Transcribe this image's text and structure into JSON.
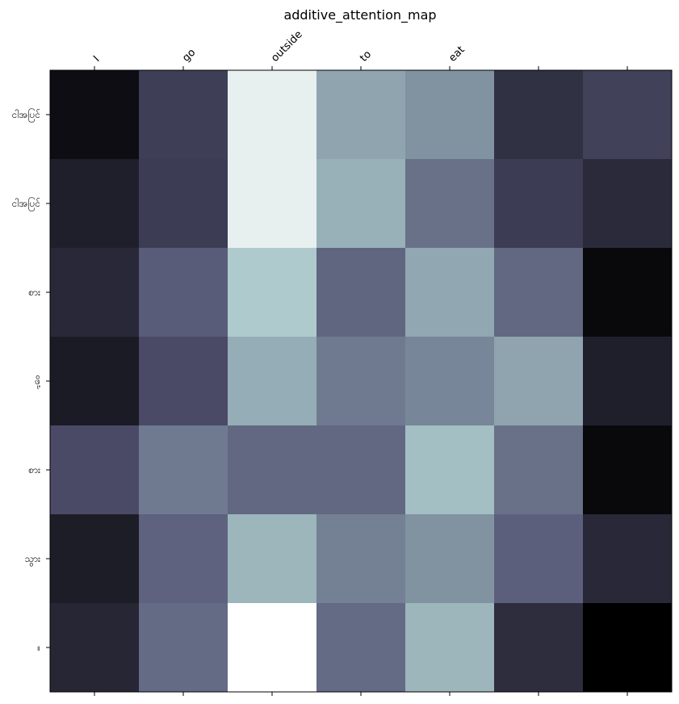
{
  "chart_data": {
    "type": "heatmap",
    "title": "additive_attention_map",
    "x_tick_labels": [
      "I",
      "go",
      "outside",
      "to",
      "eat",
      "",
      ""
    ],
    "y_tick_labels": [
      "ငါအပြင်",
      "ငါအပြင်",
      "စား",
      "ဖို့",
      "စား",
      "သွား",
      "။"
    ],
    "colormap": "bone",
    "grid": false,
    "values": [
      [
        0.06,
        0.28,
        0.93,
        0.64,
        0.58,
        0.22,
        0.29
      ],
      [
        0.14,
        0.27,
        0.93,
        0.68,
        0.47,
        0.27,
        0.19
      ],
      [
        0.18,
        0.4,
        0.77,
        0.43,
        0.65,
        0.44,
        0.04
      ],
      [
        0.12,
        0.33,
        0.67,
        0.5,
        0.54,
        0.64,
        0.14
      ],
      [
        0.33,
        0.5,
        0.44,
        0.44,
        0.73,
        0.47,
        0.04
      ],
      [
        0.13,
        0.42,
        0.7,
        0.52,
        0.58,
        0.41,
        0.18
      ],
      [
        0.17,
        0.45,
        1.0,
        0.45,
        0.7,
        0.2,
        0.0
      ]
    ]
  }
}
